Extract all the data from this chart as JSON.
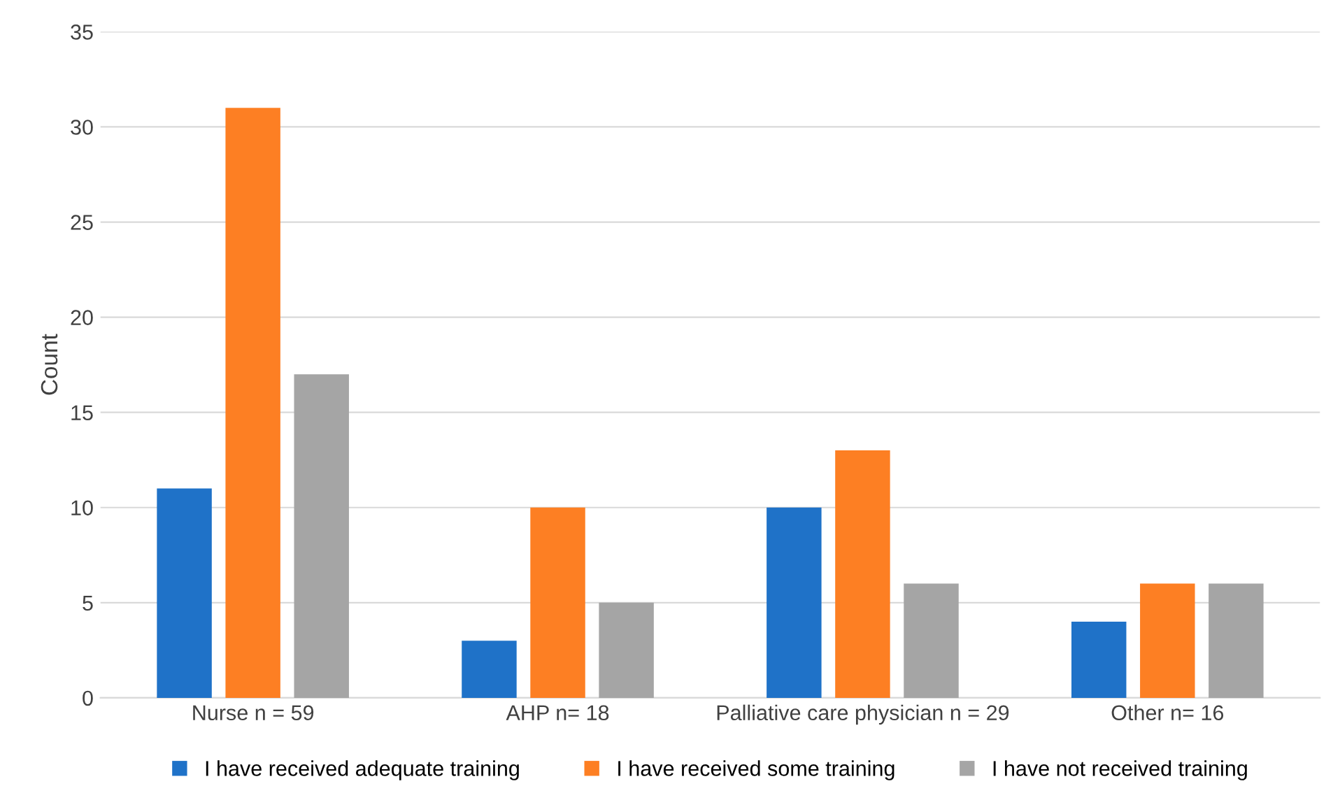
{
  "chart_data": {
    "type": "bar",
    "ylabel": "Count",
    "categories": [
      "Nurse n = 59",
      "AHP n= 18",
      "Palliative care physician n = 29",
      "Other n= 16"
    ],
    "series": [
      {
        "name": "I have received adequate training",
        "color": "#1f72c8",
        "values": [
          11,
          3,
          10,
          4
        ]
      },
      {
        "name": "I have received some training",
        "color": "#fd7f23",
        "values": [
          31,
          10,
          13,
          6
        ]
      },
      {
        "name": "I have not received training",
        "color": "#a5a5a5",
        "values": [
          17,
          5,
          6,
          6
        ]
      }
    ],
    "ylim": [
      0,
      35
    ],
    "yticks": [
      0,
      5,
      10,
      15,
      20,
      25,
      30,
      35
    ],
    "grid": "y",
    "legend": "bottom"
  }
}
